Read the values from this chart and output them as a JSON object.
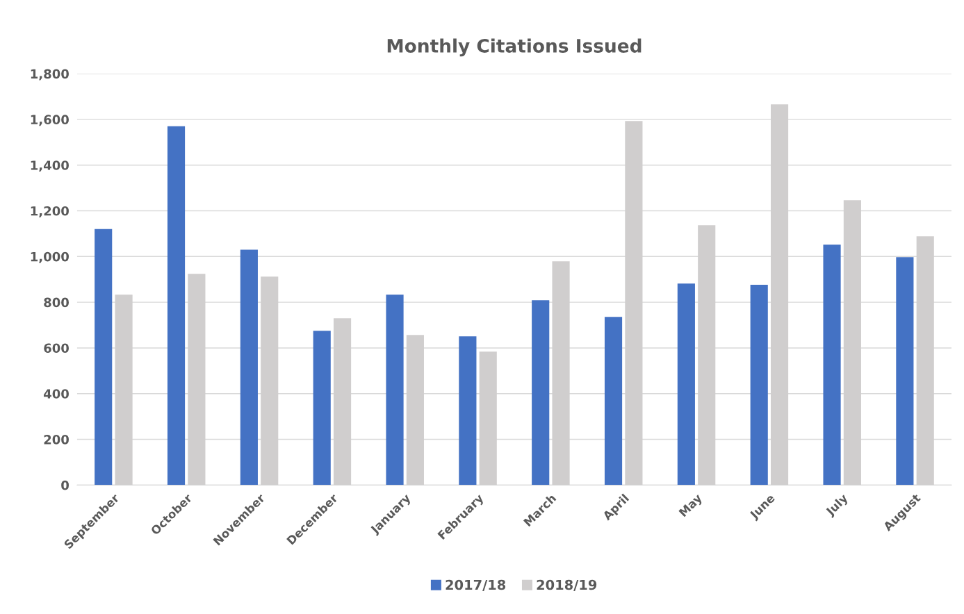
{
  "chart_data": {
    "type": "bar",
    "title": "Monthly Citations Issued",
    "categories": [
      "September",
      "October",
      "November",
      "December",
      "January",
      "February",
      "March",
      "April",
      "May",
      "June",
      "July",
      "August"
    ],
    "series": [
      {
        "name": "2017/18",
        "color": "#4472c4",
        "values": [
          1120,
          1570,
          1030,
          675,
          833,
          651,
          809,
          736,
          882,
          876,
          1052,
          997
        ]
      },
      {
        "name": "2018/19",
        "color": "#d0cece",
        "values": [
          833,
          924,
          912,
          730,
          657,
          584,
          979,
          1593,
          1137,
          1666,
          1246,
          1088
        ]
      }
    ],
    "ylim": [
      0,
      1800
    ],
    "yticks": [
      {
        "value": 0,
        "label": "0"
      },
      {
        "value": 200,
        "label": "200"
      },
      {
        "value": 400,
        "label": "400"
      },
      {
        "value": 600,
        "label": "600"
      },
      {
        "value": 800,
        "label": "800"
      },
      {
        "value": 1000,
        "label": "1,000"
      },
      {
        "value": 1200,
        "label": "1,200"
      },
      {
        "value": 1400,
        "label": "1,400"
      },
      {
        "value": 1600,
        "label": "1,600"
      },
      {
        "value": 1800,
        "label": "1,800"
      }
    ],
    "grid": "y",
    "legend": "bottom"
  }
}
